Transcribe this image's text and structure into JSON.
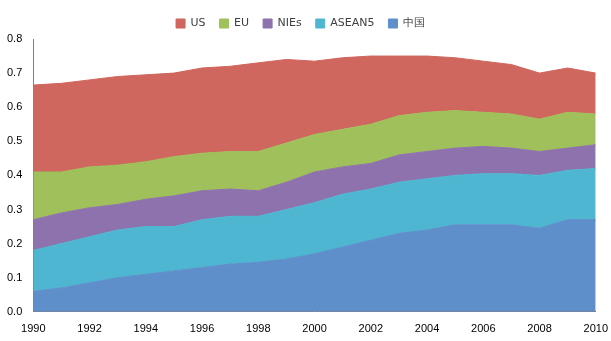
{
  "chart_data": {
    "type": "stacked_area",
    "x": [
      1990,
      1991,
      1992,
      1993,
      1994,
      1995,
      1996,
      1997,
      1998,
      1999,
      2000,
      2001,
      2002,
      2003,
      2004,
      2005,
      2006,
      2007,
      2008,
      2009,
      2010
    ],
    "series": [
      {
        "name": "中国",
        "color": "#5e8fcb",
        "values": [
          0.06,
          0.07,
          0.085,
          0.1,
          0.11,
          0.12,
          0.13,
          0.14,
          0.145,
          0.155,
          0.17,
          0.19,
          0.21,
          0.23,
          0.24,
          0.255,
          0.255,
          0.255,
          0.245,
          0.27,
          0.27
        ]
      },
      {
        "name": "ASEAN5",
        "color": "#4fb6d1",
        "values": [
          0.12,
          0.13,
          0.135,
          0.14,
          0.14,
          0.13,
          0.14,
          0.14,
          0.135,
          0.145,
          0.15,
          0.155,
          0.15,
          0.15,
          0.15,
          0.145,
          0.15,
          0.15,
          0.155,
          0.145,
          0.15
        ]
      },
      {
        "name": "NIEs",
        "color": "#8e72ad",
        "values": [
          0.09,
          0.09,
          0.085,
          0.075,
          0.08,
          0.09,
          0.085,
          0.08,
          0.075,
          0.08,
          0.09,
          0.08,
          0.075,
          0.08,
          0.08,
          0.08,
          0.08,
          0.075,
          0.07,
          0.065,
          0.07
        ]
      },
      {
        "name": "EU",
        "color": "#9fc05a",
        "values": [
          0.14,
          0.12,
          0.12,
          0.115,
          0.11,
          0.115,
          0.11,
          0.11,
          0.115,
          0.115,
          0.11,
          0.11,
          0.115,
          0.115,
          0.115,
          0.11,
          0.1,
          0.1,
          0.095,
          0.105,
          0.09
        ]
      },
      {
        "name": "US",
        "color": "#d0675e",
        "values": [
          0.255,
          0.26,
          0.255,
          0.26,
          0.255,
          0.245,
          0.25,
          0.25,
          0.26,
          0.245,
          0.215,
          0.21,
          0.2,
          0.175,
          0.165,
          0.155,
          0.15,
          0.145,
          0.135,
          0.13,
          0.12
        ]
      }
    ],
    "xlim": [
      1990,
      2010
    ],
    "xticks": [
      1990,
      1992,
      1994,
      1996,
      1998,
      2000,
      2002,
      2004,
      2006,
      2008,
      2010
    ],
    "ylim": [
      0,
      0.8
    ],
    "yticks": [
      {
        "value": 0,
        "label": "0.0"
      },
      0.1,
      0.2,
      0.3,
      0.4,
      0.5,
      0.6,
      0.7,
      0.8
    ],
    "stacked": true,
    "grid": false,
    "legend": "top"
  }
}
